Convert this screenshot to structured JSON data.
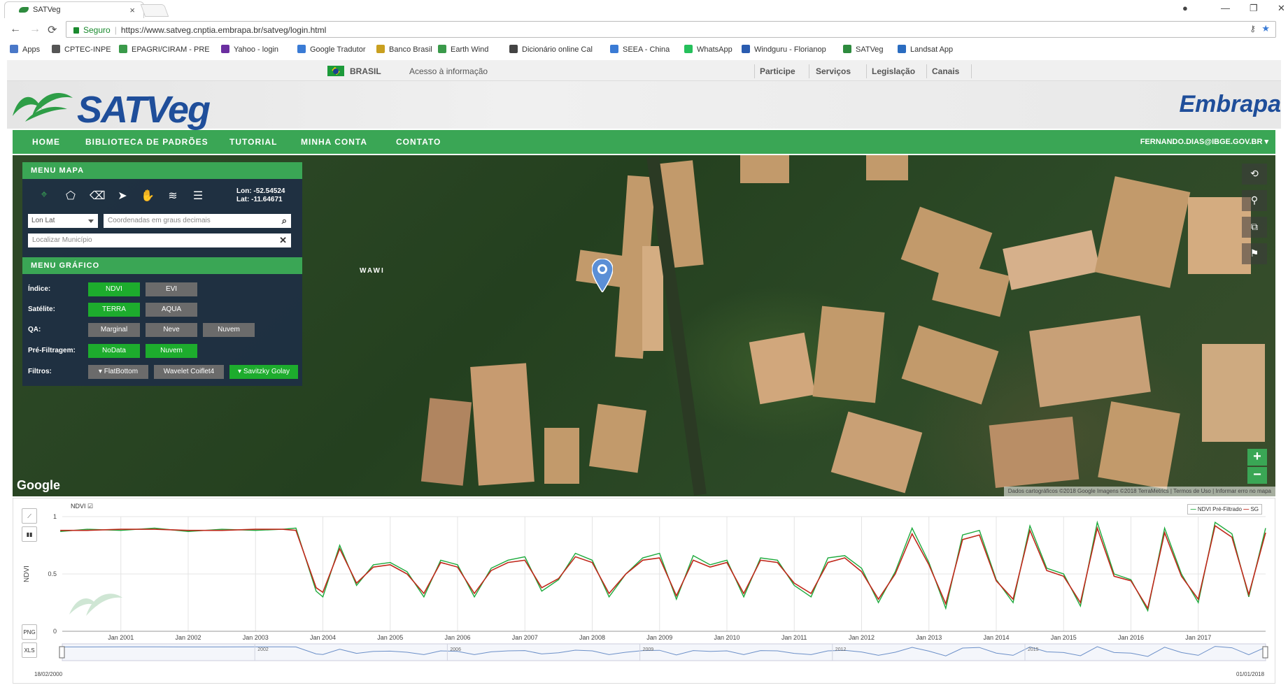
{
  "browser": {
    "tab_title": "SATVeg",
    "tab_close": "×",
    "omnibox_secure": "Seguro",
    "omnibox_url": "https://www.satveg.cnptia.embrapa.br/satveg/login.html",
    "bookmarks": [
      "Apps",
      "CPTEC-INPE",
      "EPAGRI/CIRAM - PRE",
      "Yahoo - login",
      "Google Tradutor",
      "Banco Brasil",
      "Earth Wind",
      "Dicionário online Cal",
      "SEEA - China",
      "WhatsApp",
      "Windguru - Florianop",
      "SATVeg",
      "Landsat App"
    ]
  },
  "govbar": {
    "country": "BRASIL",
    "info": "Acesso à informação",
    "links": [
      "Participe",
      "Serviços",
      "Legislação",
      "Canais"
    ]
  },
  "header": {
    "logo": "SATVeg",
    "embrapa": "Embrapa"
  },
  "nav": {
    "items": [
      "HOME",
      "BIBLIOTECA DE PADRÕES",
      "TUTORIAL",
      "MINHA CONTA",
      "CONTATO"
    ],
    "user": "FERNANDO.DIAS@IBGE.GOV.BR"
  },
  "map_menu": {
    "title": "MENU MAPA",
    "lon": "Lon: -52.54524",
    "lat": "Lat: -11.64671",
    "coord_select": "Lon Lat",
    "coord_placeholder": "Coordenadas em graus decimais",
    "municipio_placeholder": "Localizar Município"
  },
  "graph_menu": {
    "title": "MENU GRÁFICO",
    "indice_label": "Índice:",
    "indice": [
      "NDVI",
      "EVI"
    ],
    "satelite_label": "Satélite:",
    "satelite": [
      "TERRA",
      "AQUA"
    ],
    "qa_label": "QA:",
    "qa": [
      "Marginal",
      "Neve",
      "Nuvem"
    ],
    "prefiltro_label": "Pré-Filtragem:",
    "prefiltro": [
      "NoData",
      "Nuvem"
    ],
    "filtros_label": "Filtros:",
    "filtros": [
      "FlatBottom",
      "Wavelet Coiflet4",
      "Savitzky Golay"
    ]
  },
  "map": {
    "place_label": "WAWI",
    "google": "Google",
    "attribution": "Dados cartográficos ©2018 Google Imagens ©2018 TerraMetrics | Termos de Uso | Informar erro no mapa"
  },
  "chart_panel": {
    "series_check": "NDVI",
    "legend_prefiltered": "NDVI Pré-Filtrado",
    "legend_sg": "SG",
    "png": "PNG",
    "xls": "XLS",
    "range_start": "18/02/2000",
    "range_end": "01/01/2018"
  },
  "chart_data": {
    "type": "line",
    "title": "",
    "xlabel": "",
    "ylabel": "NDVI",
    "ylim": [
      0,
      1
    ],
    "xlim": [
      "2000-02-18",
      "2018-01-01"
    ],
    "x_ticks": [
      "Jan 2001",
      "Jan 2002",
      "Jan 2003",
      "Jan 2004",
      "Jan 2005",
      "Jan 2006",
      "Jan 2007",
      "Jan 2008",
      "Jan 2009",
      "Jan 2010",
      "Jan 2011",
      "Jan 2012",
      "Jan 2013",
      "Jan 2014",
      "Jan 2015",
      "Jan 2016",
      "Jan 2017"
    ],
    "y_ticks": [
      "0",
      "0.5",
      "1"
    ],
    "navigator_ticks": [
      "2002",
      "2006",
      "2009",
      "2012",
      "2015"
    ],
    "grid": true,
    "legend": "top-right",
    "series_colors": {
      "NDVI Pré-Filtrado": "#1daa3c",
      "SG": "#c0281b"
    },
    "x": [
      2000.1,
      2000.5,
      2001.0,
      2001.5,
      2002.0,
      2002.5,
      2003.0,
      2003.4,
      2003.6,
      2003.9,
      2004.0,
      2004.25,
      2004.5,
      2004.75,
      2005.0,
      2005.25,
      2005.5,
      2005.75,
      2006.0,
      2006.25,
      2006.5,
      2006.75,
      2007.0,
      2007.25,
      2007.5,
      2007.75,
      2008.0,
      2008.25,
      2008.5,
      2008.75,
      2009.0,
      2009.25,
      2009.5,
      2009.75,
      2010.0,
      2010.25,
      2010.5,
      2010.75,
      2011.0,
      2011.25,
      2011.5,
      2011.75,
      2012.0,
      2012.25,
      2012.5,
      2012.75,
      2013.0,
      2013.25,
      2013.5,
      2013.75,
      2014.0,
      2014.25,
      2014.5,
      2014.75,
      2015.0,
      2015.25,
      2015.5,
      2015.75,
      2016.0,
      2016.25,
      2016.5,
      2016.75,
      2017.0,
      2017.25,
      2017.5,
      2017.75,
      2018.0
    ],
    "series": [
      {
        "name": "NDVI Pré-Filtrado",
        "values": [
          0.87,
          0.89,
          0.88,
          0.9,
          0.87,
          0.89,
          0.88,
          0.89,
          0.9,
          0.35,
          0.3,
          0.75,
          0.4,
          0.58,
          0.6,
          0.52,
          0.3,
          0.62,
          0.58,
          0.3,
          0.55,
          0.62,
          0.65,
          0.35,
          0.45,
          0.68,
          0.62,
          0.3,
          0.5,
          0.64,
          0.68,
          0.28,
          0.66,
          0.58,
          0.62,
          0.3,
          0.64,
          0.62,
          0.4,
          0.3,
          0.64,
          0.66,
          0.55,
          0.25,
          0.52,
          0.9,
          0.6,
          0.2,
          0.84,
          0.88,
          0.45,
          0.25,
          0.92,
          0.55,
          0.5,
          0.22,
          0.95,
          0.5,
          0.45,
          0.18,
          0.9,
          0.5,
          0.25,
          0.95,
          0.85,
          0.3,
          0.9
        ]
      },
      {
        "name": "SG",
        "values": [
          0.88,
          0.88,
          0.89,
          0.89,
          0.88,
          0.88,
          0.89,
          0.89,
          0.88,
          0.38,
          0.34,
          0.72,
          0.42,
          0.56,
          0.58,
          0.5,
          0.33,
          0.6,
          0.56,
          0.33,
          0.53,
          0.6,
          0.62,
          0.38,
          0.46,
          0.65,
          0.6,
          0.33,
          0.5,
          0.62,
          0.64,
          0.31,
          0.62,
          0.56,
          0.6,
          0.33,
          0.62,
          0.6,
          0.42,
          0.33,
          0.6,
          0.64,
          0.52,
          0.28,
          0.5,
          0.85,
          0.58,
          0.24,
          0.8,
          0.84,
          0.44,
          0.28,
          0.88,
          0.53,
          0.48,
          0.25,
          0.9,
          0.48,
          0.44,
          0.2,
          0.86,
          0.48,
          0.28,
          0.92,
          0.82,
          0.32,
          0.86
        ]
      }
    ]
  }
}
